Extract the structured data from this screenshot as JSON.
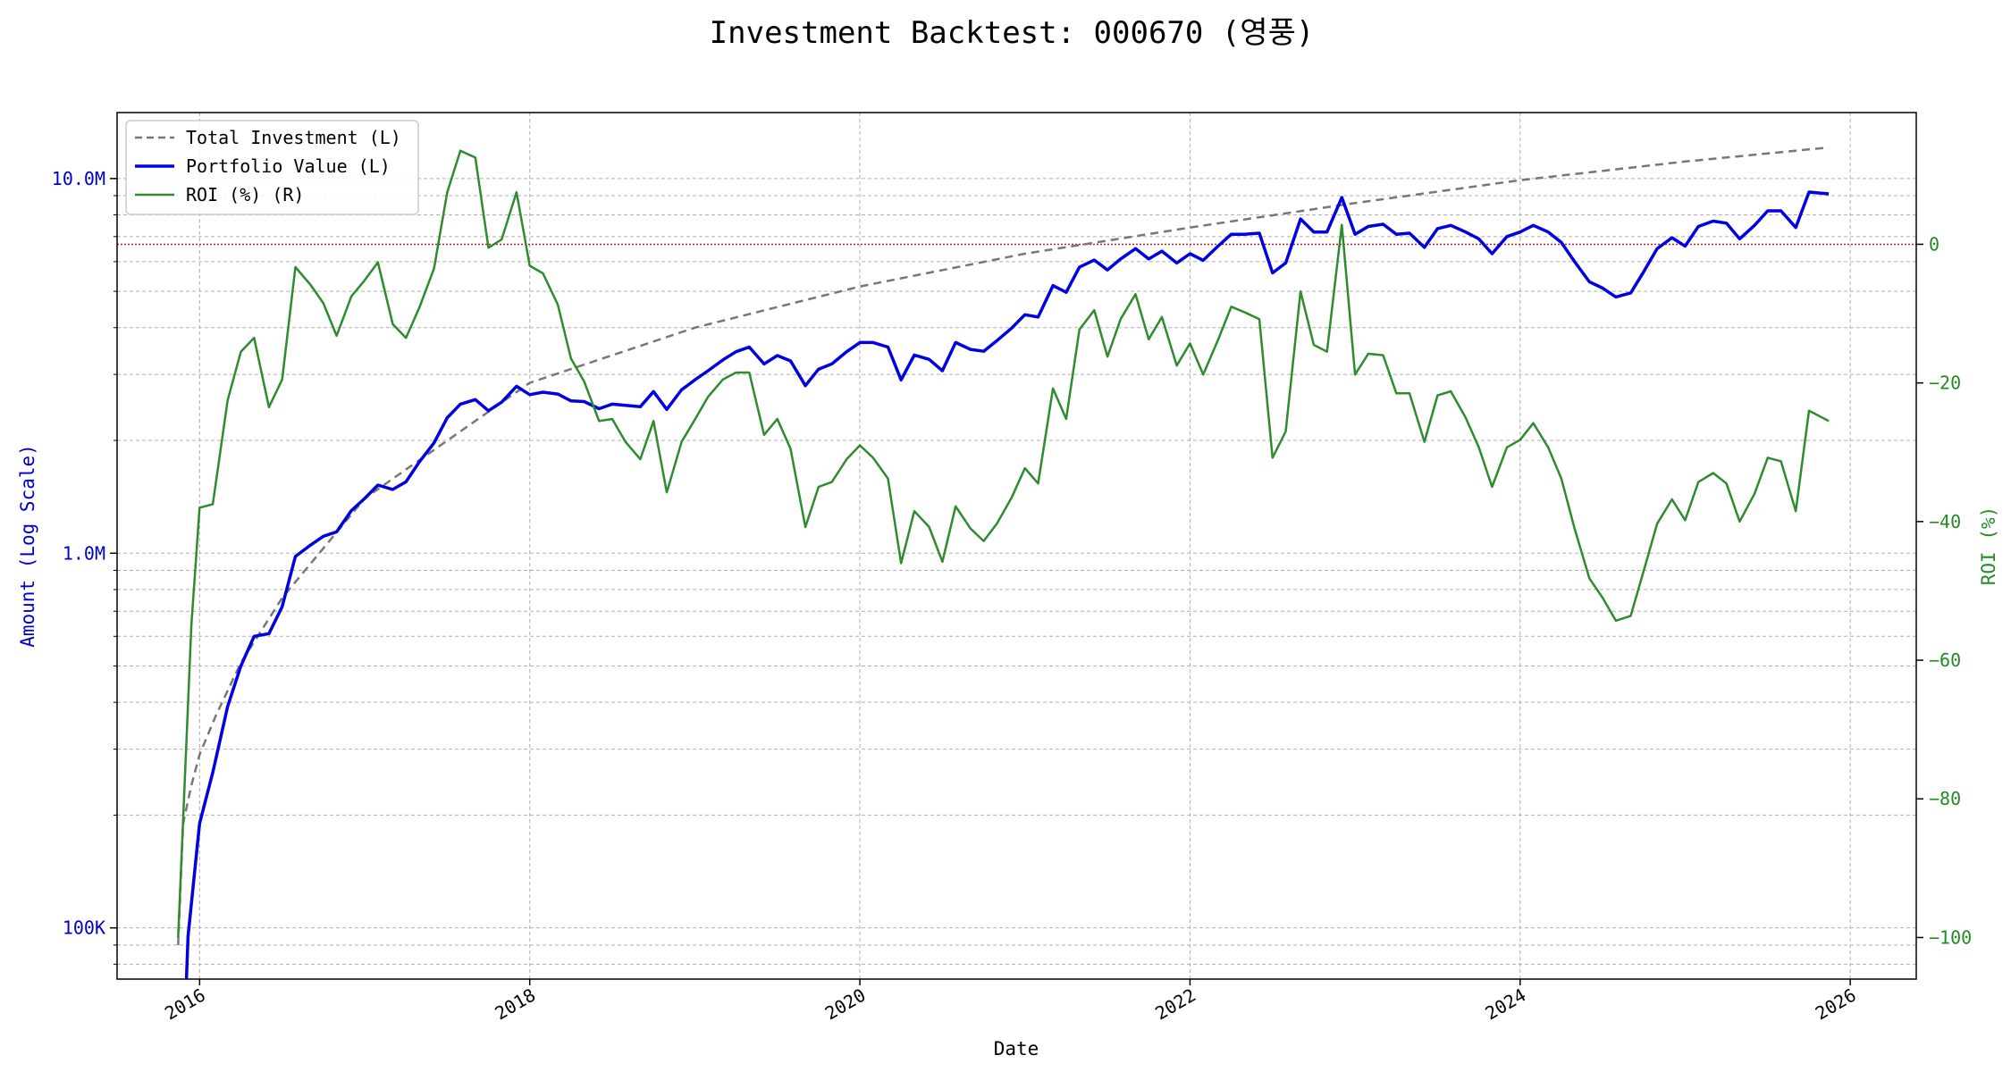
{
  "chart_data": {
    "type": "line",
    "title": "Investment Backtest: 000670 (영풍)",
    "xlabel": "Date",
    "ylabel_left": "Amount (Log Scale)",
    "ylabel_right": "ROI (%)",
    "x_ticks": [
      "2016",
      "2018",
      "2020",
      "2022",
      "2024",
      "2026"
    ],
    "left_axis": {
      "scale": "log",
      "ylim": [
        73000,
        15000000
      ],
      "ticks": [
        {
          "value": 100000,
          "label": "100K"
        },
        {
          "value": 1000000,
          "label": "1.0M"
        },
        {
          "value": 10000000,
          "label": "10.0M"
        }
      ],
      "color": "#0000cc"
    },
    "right_axis": {
      "scale": "linear",
      "ylim": [
        -106,
        19
      ],
      "ticks": [
        {
          "value": 0,
          "label": "0"
        },
        {
          "value": -20,
          "label": "−20"
        },
        {
          "value": -40,
          "label": "−40"
        },
        {
          "value": -60,
          "label": "−60"
        },
        {
          "value": -80,
          "label": "−80"
        },
        {
          "value": -100,
          "label": "−100"
        }
      ],
      "color": "#228b22"
    },
    "grid": true,
    "legend_position": "top-left",
    "reference_line": {
      "axis": "right",
      "value": 0,
      "color": "#b22222",
      "style": "dotted"
    },
    "series": [
      {
        "name": "Total Investment (L)",
        "axis": "left",
        "color": "#777777",
        "style": "dashed",
        "x": [
          2015.87,
          2015.9,
          2015.95,
          2016.0,
          2016.1,
          2016.25,
          2016.5,
          2017.0,
          2018.0,
          2019.0,
          2020.0,
          2021.0,
          2022.0,
          2023.0,
          2024.0,
          2025.0,
          2025.87
        ],
        "y": [
          90000,
          190000,
          240000,
          290000,
          370000,
          510000,
          760000,
          1400000,
          2850000,
          4000000,
          5150000,
          6300000,
          7400000,
          8600000,
          9900000,
          11100000,
          12100000
        ]
      },
      {
        "name": "Portfolio Value (L)",
        "axis": "left",
        "color": "#0000e0",
        "style": "solid",
        "x": [
          2015.92,
          2015.93,
          2016.0,
          2016.08,
          2016.17,
          2016.25,
          2016.33,
          2016.42,
          2016.5,
          2016.58,
          2016.67,
          2016.75,
          2016.83,
          2016.92,
          2017.0,
          2017.08,
          2017.17,
          2017.25,
          2017.33,
          2017.42,
          2017.5,
          2017.58,
          2017.67,
          2017.75,
          2017.83,
          2017.92,
          2018.0,
          2018.08,
          2018.17,
          2018.25,
          2018.33,
          2018.42,
          2018.5,
          2018.58,
          2018.67,
          2018.75,
          2018.83,
          2018.92,
          2019.0,
          2019.08,
          2019.17,
          2019.25,
          2019.33,
          2019.42,
          2019.5,
          2019.58,
          2019.67,
          2019.75,
          2019.83,
          2019.92,
          2020.0,
          2020.08,
          2020.17,
          2020.25,
          2020.33,
          2020.42,
          2020.5,
          2020.58,
          2020.67,
          2020.75,
          2020.83,
          2020.92,
          2021.0,
          2021.08,
          2021.17,
          2021.25,
          2021.33,
          2021.42,
          2021.5,
          2021.58,
          2021.67,
          2021.75,
          2021.83,
          2021.92,
          2022.0,
          2022.08,
          2022.17,
          2022.25,
          2022.33,
          2022.42,
          2022.5,
          2022.58,
          2022.67,
          2022.75,
          2022.83,
          2022.92,
          2023.0,
          2023.08,
          2023.17,
          2023.25,
          2023.33,
          2023.42,
          2023.5,
          2023.58,
          2023.67,
          2023.75,
          2023.83,
          2023.92,
          2024.0,
          2024.08,
          2024.17,
          2024.25,
          2024.33,
          2024.42,
          2024.5,
          2024.58,
          2024.67,
          2024.75,
          2024.83,
          2024.92,
          2025.0,
          2025.08,
          2025.17,
          2025.25,
          2025.33,
          2025.42,
          2025.5,
          2025.58,
          2025.67,
          2025.75,
          2025.87
        ],
        "y": [
          73000,
          95000,
          190000,
          260000,
          390000,
          500000,
          600000,
          610000,
          720000,
          980000,
          1050000,
          1110000,
          1140000,
          1300000,
          1400000,
          1520000,
          1480000,
          1550000,
          1750000,
          1970000,
          2300000,
          2500000,
          2570000,
          2400000,
          2530000,
          2790000,
          2650000,
          2690000,
          2660000,
          2550000,
          2540000,
          2430000,
          2500000,
          2480000,
          2460000,
          2700000,
          2420000,
          2730000,
          2900000,
          3070000,
          3280000,
          3450000,
          3550000,
          3200000,
          3370000,
          3260000,
          2800000,
          3100000,
          3200000,
          3450000,
          3650000,
          3650000,
          3550000,
          2900000,
          3380000,
          3290000,
          3070000,
          3650000,
          3500000,
          3460000,
          3690000,
          3990000,
          4330000,
          4270000,
          5180000,
          4970000,
          5800000,
          6060000,
          5700000,
          6100000,
          6500000,
          6100000,
          6400000,
          5950000,
          6300000,
          6050000,
          6600000,
          7100000,
          7100000,
          7150000,
          5600000,
          5950000,
          7800000,
          7200000,
          7200000,
          8900000,
          7100000,
          7450000,
          7550000,
          7100000,
          7150000,
          6550000,
          7350000,
          7500000,
          7200000,
          6900000,
          6300000,
          7000000,
          7200000,
          7500000,
          7200000,
          6750000,
          6000000,
          5300000,
          5100000,
          4830000,
          4950000,
          5650000,
          6500000,
          6950000,
          6600000,
          7450000,
          7700000,
          7600000,
          6900000,
          7500000,
          8200000,
          8200000,
          7400000,
          9200000,
          9100000
        ]
      },
      {
        "name": "ROI (%) (R)",
        "axis": "right",
        "color": "#2e8b2e",
        "style": "solid",
        "x": [
          2015.87,
          2015.95,
          2016.0,
          2016.08,
          2016.17,
          2016.25,
          2016.33,
          2016.42,
          2016.5,
          2016.58,
          2016.67,
          2016.75,
          2016.83,
          2016.92,
          2017.0,
          2017.08,
          2017.17,
          2017.25,
          2017.33,
          2017.42,
          2017.5,
          2017.58,
          2017.67,
          2017.75,
          2017.83,
          2017.92,
          2018.0,
          2018.08,
          2018.17,
          2018.25,
          2018.33,
          2018.42,
          2018.5,
          2018.58,
          2018.67,
          2018.75,
          2018.83,
          2018.92,
          2019.0,
          2019.08,
          2019.17,
          2019.25,
          2019.33,
          2019.42,
          2019.5,
          2019.58,
          2019.67,
          2019.75,
          2019.83,
          2019.92,
          2020.0,
          2020.08,
          2020.17,
          2020.25,
          2020.33,
          2020.42,
          2020.5,
          2020.58,
          2020.67,
          2020.75,
          2020.83,
          2020.92,
          2021.0,
          2021.08,
          2021.17,
          2021.25,
          2021.33,
          2021.42,
          2021.5,
          2021.58,
          2021.67,
          2021.75,
          2021.83,
          2021.92,
          2022.0,
          2022.08,
          2022.17,
          2022.25,
          2022.33,
          2022.42,
          2022.5,
          2022.58,
          2022.67,
          2022.75,
          2022.83,
          2022.92,
          2023.0,
          2023.08,
          2023.17,
          2023.25,
          2023.33,
          2023.42,
          2023.5,
          2023.58,
          2023.67,
          2023.75,
          2023.83,
          2023.92,
          2024.0,
          2024.08,
          2024.17,
          2024.25,
          2024.33,
          2024.42,
          2024.5,
          2024.58,
          2024.67,
          2024.75,
          2024.83,
          2024.92,
          2025.0,
          2025.08,
          2025.17,
          2025.25,
          2025.33,
          2025.42,
          2025.5,
          2025.58,
          2025.67,
          2025.75,
          2025.87
        ],
        "y": [
          -100,
          -55,
          -38,
          -37.5,
          -22.5,
          -15.5,
          -13.5,
          -23.5,
          -19.5,
          -3.3,
          -5.8,
          -8.5,
          -13.2,
          -7.5,
          -5.2,
          -2.6,
          -11.5,
          -13.5,
          -9.2,
          -3.5,
          7.5,
          13.5,
          12.5,
          -0.5,
          0.7,
          7.5,
          -3.1,
          -4.2,
          -8.7,
          -16.5,
          -19.8,
          -25.5,
          -25.2,
          -28.5,
          -31,
          -25.5,
          -35.8,
          -28.5,
          -25.3,
          -22,
          -19.5,
          -18.5,
          -18.5,
          -27.5,
          -25.2,
          -29.5,
          -40.8,
          -35,
          -34.3,
          -31,
          -29,
          -30.8,
          -33.8,
          -46,
          -38.5,
          -40.8,
          -45.8,
          -37.8,
          -41,
          -42.8,
          -40.3,
          -36.5,
          -32.3,
          -34.5,
          -20.8,
          -25.2,
          -12.3,
          -9.5,
          -16.2,
          -10.8,
          -7.2,
          -13.7,
          -10.5,
          -17.5,
          -14.3,
          -18.8,
          -13.8,
          -9,
          -9.8,
          -10.8,
          -30.8,
          -27,
          -6.8,
          -14.5,
          -15.5,
          2.8,
          -18.8,
          -15.8,
          -16,
          -21.5,
          -21.5,
          -28.5,
          -21.8,
          -21.2,
          -25,
          -29.3,
          -35,
          -29.3,
          -28.2,
          -25.8,
          -29.3,
          -33.8,
          -41,
          -48.2,
          -51,
          -54.3,
          -53.6,
          -47,
          -40.3,
          -36.8,
          -39.8,
          -34.3,
          -33,
          -34.5,
          -40,
          -36,
          -30.8,
          -31.3,
          -38.5,
          -24,
          -25.5
        ]
      }
    ]
  }
}
